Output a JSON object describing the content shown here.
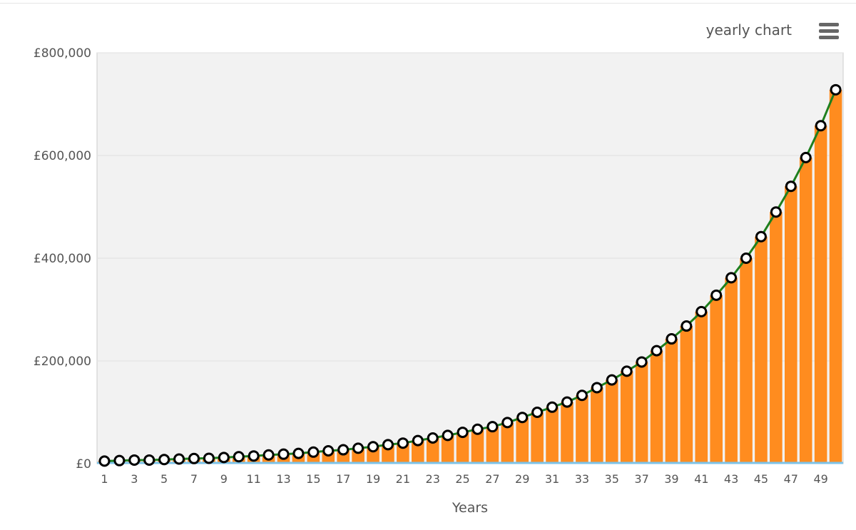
{
  "header": {
    "chart_label": "yearly chart",
    "menu_icon": "hamburger-menu-icon"
  },
  "colors": {
    "bar": "#FF8C1F",
    "line": "#1E7F1E",
    "baseline": "#7CC3E8",
    "plot_bg": "#F2F2F2",
    "grid": "#E0E0E0"
  },
  "chart_data": {
    "type": "bar",
    "xlabel": "Years",
    "ylabel": "",
    "ylim": [
      0,
      800000
    ],
    "y_ticks": [
      "£0",
      "£200,000",
      "£400,000",
      "£600,000",
      "£800,000"
    ],
    "grid": true,
    "categories": [
      1,
      2,
      3,
      4,
      5,
      6,
      7,
      8,
      9,
      10,
      11,
      12,
      13,
      14,
      15,
      16,
      17,
      18,
      19,
      20,
      21,
      22,
      23,
      24,
      25,
      26,
      27,
      28,
      29,
      30,
      31,
      32,
      33,
      34,
      35,
      36,
      37,
      38,
      39,
      40,
      41,
      42,
      43,
      44,
      45,
      46,
      47,
      48,
      49,
      50
    ],
    "x_tick_labels": [
      "1",
      "3",
      "5",
      "7",
      "9",
      "11",
      "13",
      "15",
      "17",
      "19",
      "21",
      "23",
      "25",
      "27",
      "29",
      "31",
      "33",
      "35",
      "37",
      "39",
      "41",
      "43",
      "45",
      "47",
      "49"
    ],
    "series": [
      {
        "type": "bar",
        "values": [
          5000,
          6000,
          7000,
          7000,
          8000,
          9000,
          10000,
          10500,
          12000,
          13500,
          15000,
          17000,
          18500,
          20000,
          22500,
          25000,
          27000,
          30000,
          33000,
          37000,
          40000,
          45000,
          50000,
          55000,
          61000,
          67000,
          72000,
          80000,
          90000,
          100000,
          110000,
          120000,
          133000,
          148000,
          163000,
          180000,
          198000,
          220000,
          243000,
          268000,
          296000,
          328000,
          362000,
          400000,
          442000,
          490000,
          540000,
          596000,
          658000,
          728000
        ]
      },
      {
        "type": "line",
        "values": [
          5000,
          6000,
          7000,
          7000,
          8000,
          9000,
          10000,
          10500,
          12000,
          13500,
          15000,
          17000,
          18500,
          20000,
          22500,
          25000,
          27000,
          30000,
          33000,
          37000,
          40000,
          45000,
          50000,
          55000,
          61000,
          67000,
          72000,
          80000,
          90000,
          100000,
          110000,
          120000,
          133000,
          148000,
          163000,
          180000,
          198000,
          220000,
          243000,
          268000,
          296000,
          328000,
          362000,
          400000,
          442000,
          490000,
          540000,
          596000,
          658000,
          728000
        ]
      }
    ]
  }
}
